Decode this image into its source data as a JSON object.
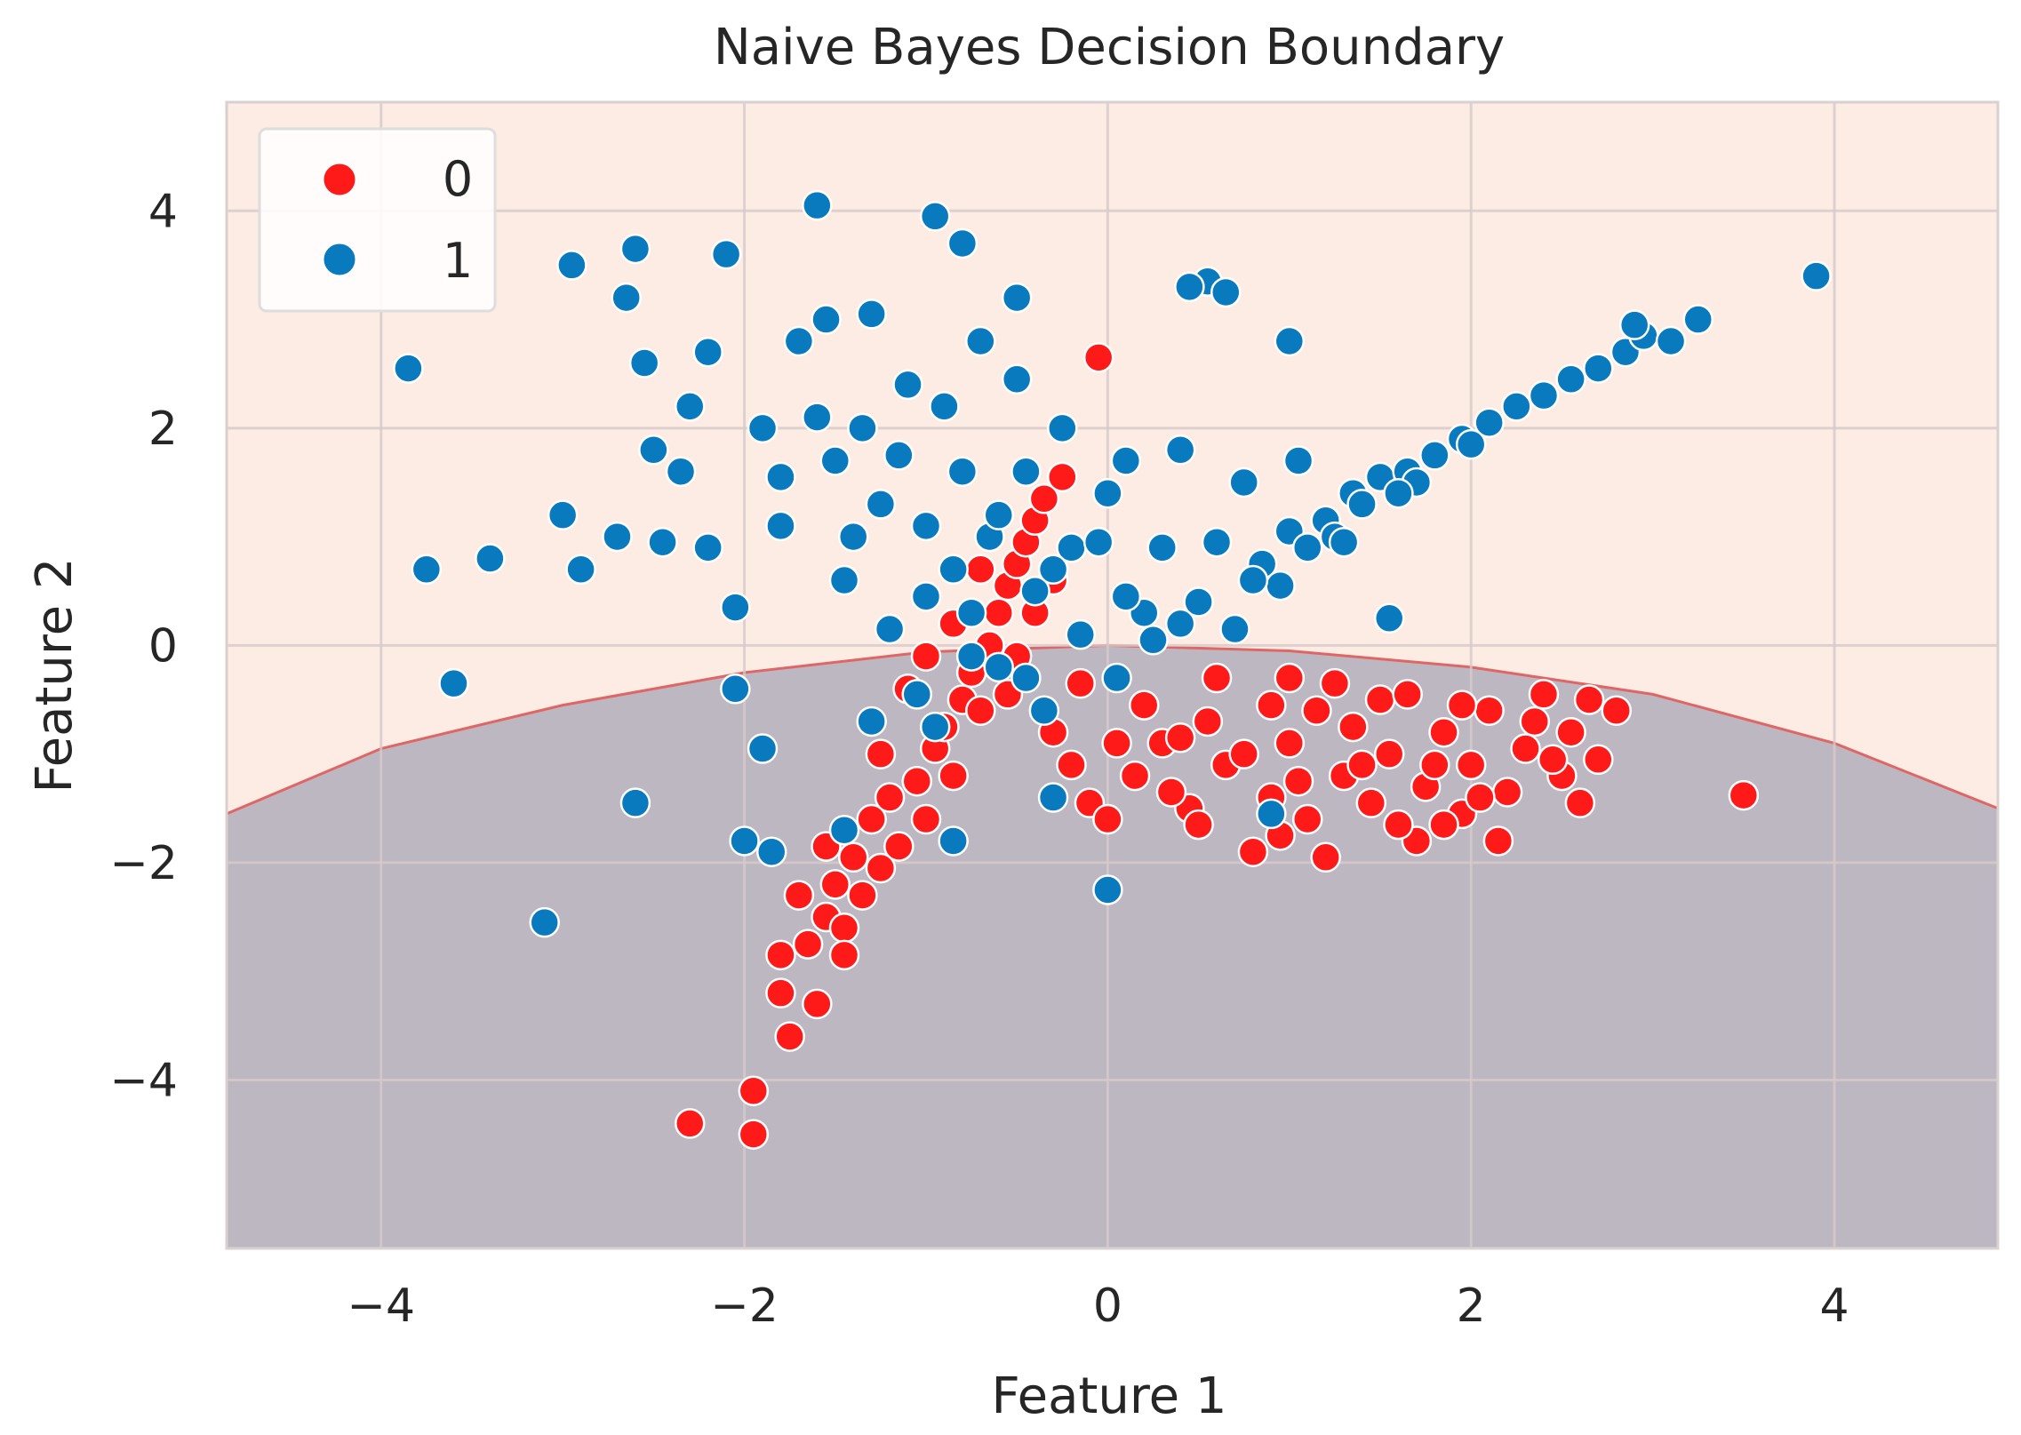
{
  "chart_data": {
    "type": "scatter",
    "title": "Naive Bayes Decision Boundary",
    "xlabel": "Feature 1",
    "ylabel": "Feature 2",
    "xlim": [
      -4.85,
      4.9
    ],
    "ylim": [
      -5.55,
      5.0
    ],
    "xticks": [
      -4,
      -2,
      0,
      2,
      4
    ],
    "yticks": [
      -4,
      -2,
      0,
      2,
      4
    ],
    "xtick_labels": [
      "−4",
      "−2",
      "0",
      "2",
      "4"
    ],
    "ytick_labels": [
      "−4",
      "−2",
      "0",
      "2",
      "4"
    ],
    "grid": true,
    "legend_position": "top-left",
    "background_colors": {
      "class_1_region": "#fdece3",
      "class_0_region": "#bdb7c1",
      "boundary": "#e06666"
    },
    "decision_boundary": {
      "x": [
        -4.85,
        -4.0,
        -3.0,
        -2.0,
        -1.0,
        0.0,
        1.0,
        2.0,
        3.0,
        4.0,
        4.9
      ],
      "y": [
        -1.55,
        -0.95,
        -0.55,
        -0.25,
        -0.06,
        0.0,
        -0.05,
        -0.2,
        -0.45,
        -0.9,
        -1.5
      ]
    },
    "series": [
      {
        "name": "0",
        "color": "#ff1a1a",
        "points": [
          [
            -0.05,
            2.65
          ],
          [
            3.5,
            -1.38
          ],
          [
            -2.3,
            -4.4
          ],
          [
            -1.95,
            -4.1
          ],
          [
            -1.95,
            -4.5
          ],
          [
            -1.75,
            -3.6
          ],
          [
            -1.8,
            -3.2
          ],
          [
            -1.8,
            -2.85
          ],
          [
            -1.6,
            -3.3
          ],
          [
            -1.65,
            -2.75
          ],
          [
            -1.55,
            -2.5
          ],
          [
            -1.5,
            -2.2
          ],
          [
            -1.45,
            -2.6
          ],
          [
            -1.4,
            -1.95
          ],
          [
            -1.35,
            -2.3
          ],
          [
            -1.3,
            -1.6
          ],
          [
            -1.25,
            -2.05
          ],
          [
            -1.2,
            -1.4
          ],
          [
            -1.15,
            -1.85
          ],
          [
            -1.05,
            -1.25
          ],
          [
            -1.0,
            -1.6
          ],
          [
            -0.95,
            -0.95
          ],
          [
            -0.9,
            -0.75
          ],
          [
            -0.85,
            -1.2
          ],
          [
            -0.8,
            -0.5
          ],
          [
            -0.75,
            -0.25
          ],
          [
            -0.7,
            -0.6
          ],
          [
            -0.65,
            0.0
          ],
          [
            -0.6,
            0.3
          ],
          [
            -0.55,
            0.55
          ],
          [
            -0.5,
            0.75
          ],
          [
            -0.45,
            0.95
          ],
          [
            -0.4,
            1.15
          ],
          [
            -0.35,
            1.35
          ],
          [
            -0.25,
            1.55
          ],
          [
            -0.3,
            0.6
          ],
          [
            -0.4,
            0.3
          ],
          [
            -0.5,
            -0.1
          ],
          [
            -0.3,
            -0.8
          ],
          [
            -0.2,
            -1.1
          ],
          [
            -0.1,
            -1.45
          ],
          [
            0.0,
            -1.6
          ],
          [
            0.15,
            -1.2
          ],
          [
            0.3,
            -0.9
          ],
          [
            0.45,
            -1.5
          ],
          [
            0.55,
            -0.7
          ],
          [
            0.65,
            -1.1
          ],
          [
            0.8,
            -1.9
          ],
          [
            0.9,
            -1.4
          ],
          [
            1.0,
            -0.9
          ],
          [
            1.1,
            -1.6
          ],
          [
            1.15,
            -0.6
          ],
          [
            1.2,
            -1.95
          ],
          [
            1.3,
            -1.2
          ],
          [
            1.35,
            -0.75
          ],
          [
            1.45,
            -1.45
          ],
          [
            1.5,
            -0.5
          ],
          [
            1.55,
            -1.0
          ],
          [
            1.7,
            -1.8
          ],
          [
            1.75,
            -1.3
          ],
          [
            1.85,
            -0.8
          ],
          [
            1.95,
            -1.55
          ],
          [
            2.0,
            -1.1
          ],
          [
            2.1,
            -0.6
          ],
          [
            2.2,
            -1.35
          ],
          [
            2.3,
            -0.95
          ],
          [
            2.4,
            -0.45
          ],
          [
            2.5,
            -1.2
          ],
          [
            2.55,
            -0.8
          ],
          [
            2.65,
            -0.5
          ],
          [
            2.7,
            -1.05
          ],
          [
            2.8,
            -0.6
          ],
          [
            2.6,
            -1.45
          ],
          [
            2.15,
            -1.8
          ],
          [
            1.6,
            -1.65
          ],
          [
            0.6,
            -0.3
          ],
          [
            0.9,
            -0.55
          ],
          [
            1.25,
            -0.35
          ],
          [
            1.95,
            -0.55
          ],
          [
            2.35,
            -0.7
          ],
          [
            0.2,
            -0.55
          ],
          [
            0.4,
            -0.85
          ],
          [
            0.75,
            -1.0
          ],
          [
            1.05,
            -1.25
          ],
          [
            1.4,
            -1.1
          ],
          [
            1.8,
            -1.1
          ],
          [
            2.05,
            -1.4
          ],
          [
            0.05,
            -0.9
          ],
          [
            -0.15,
            -0.35
          ],
          [
            0.35,
            -1.35
          ],
          [
            0.95,
            -1.75
          ],
          [
            1.65,
            -0.45
          ],
          [
            -1.1,
            -0.4
          ],
          [
            -1.25,
            -1.0
          ],
          [
            -1.0,
            -0.1
          ],
          [
            -0.85,
            0.2
          ],
          [
            -0.7,
            0.7
          ],
          [
            -0.55,
            -0.45
          ],
          [
            -1.55,
            -1.85
          ],
          [
            -1.7,
            -2.3
          ],
          [
            -1.45,
            -2.85
          ],
          [
            0.5,
            -1.65
          ],
          [
            1.0,
            -0.3
          ],
          [
            1.85,
            -1.65
          ],
          [
            2.45,
            -1.05
          ]
        ]
      },
      {
        "name": "1",
        "color": "#0a7abf",
        "points": [
          [
            3.9,
            3.4
          ],
          [
            -3.85,
            2.55
          ],
          [
            -3.75,
            0.7
          ],
          [
            -3.6,
            -0.35
          ],
          [
            -3.4,
            0.8
          ],
          [
            -3.1,
            -2.55
          ],
          [
            -3.0,
            1.2
          ],
          [
            -2.95,
            3.5
          ],
          [
            -2.9,
            0.7
          ],
          [
            -2.65,
            3.2
          ],
          [
            -2.6,
            3.65
          ],
          [
            -2.55,
            2.6
          ],
          [
            -2.5,
            1.8
          ],
          [
            -2.45,
            0.95
          ],
          [
            -2.6,
            -1.45
          ],
          [
            -2.3,
            2.2
          ],
          [
            -2.2,
            2.7
          ],
          [
            -2.1,
            3.6
          ],
          [
            -2.05,
            0.35
          ],
          [
            -2.05,
            -0.4
          ],
          [
            -2.0,
            -1.8
          ],
          [
            -1.9,
            -0.95
          ],
          [
            -1.85,
            -1.9
          ],
          [
            -1.9,
            2.0
          ],
          [
            -1.8,
            1.1
          ],
          [
            -1.7,
            2.8
          ],
          [
            -1.6,
            4.05
          ],
          [
            -1.55,
            3.0
          ],
          [
            -1.5,
            1.7
          ],
          [
            -1.45,
            0.6
          ],
          [
            -1.35,
            2.0
          ],
          [
            -1.3,
            3.05
          ],
          [
            -1.25,
            1.3
          ],
          [
            -1.2,
            0.15
          ],
          [
            -1.1,
            2.4
          ],
          [
            -1.0,
            1.1
          ],
          [
            -0.95,
            3.95
          ],
          [
            -0.9,
            2.2
          ],
          [
            -0.85,
            0.7
          ],
          [
            -0.8,
            3.7
          ],
          [
            -0.8,
            1.6
          ],
          [
            -0.75,
            0.3
          ],
          [
            -0.7,
            2.8
          ],
          [
            -0.65,
            1.0
          ],
          [
            -0.6,
            -0.2
          ],
          [
            -0.5,
            3.2
          ],
          [
            -0.45,
            1.6
          ],
          [
            -0.4,
            0.5
          ],
          [
            -0.35,
            -0.6
          ],
          [
            -0.3,
            -1.4
          ],
          [
            -0.25,
            2.0
          ],
          [
            -0.2,
            0.9
          ],
          [
            -0.15,
            0.1
          ],
          [
            0.0,
            1.4
          ],
          [
            0.05,
            -0.3
          ],
          [
            0.1,
            1.7
          ],
          [
            0.2,
            0.3
          ],
          [
            0.3,
            0.9
          ],
          [
            0.4,
            1.8
          ],
          [
            0.5,
            0.4
          ],
          [
            0.55,
            3.35
          ],
          [
            0.45,
            3.3
          ],
          [
            0.65,
            3.25
          ],
          [
            0.7,
            0.15
          ],
          [
            0.75,
            1.5
          ],
          [
            0.85,
            0.75
          ],
          [
            0.9,
            -1.55
          ],
          [
            1.0,
            2.8
          ],
          [
            1.0,
            1.05
          ],
          [
            1.05,
            1.7
          ],
          [
            1.2,
            1.15
          ],
          [
            1.35,
            1.4
          ],
          [
            1.5,
            1.55
          ],
          [
            1.55,
            0.25
          ],
          [
            1.65,
            1.6
          ],
          [
            1.8,
            1.75
          ],
          [
            1.95,
            1.9
          ],
          [
            2.1,
            2.05
          ],
          [
            2.25,
            2.2
          ],
          [
            2.4,
            2.3
          ],
          [
            2.55,
            2.45
          ],
          [
            2.7,
            2.55
          ],
          [
            2.85,
            2.7
          ],
          [
            2.95,
            2.85
          ],
          [
            3.1,
            2.8
          ],
          [
            3.25,
            3.0
          ],
          [
            2.9,
            2.95
          ],
          [
            0.0,
            -2.25
          ],
          [
            -1.3,
            -0.7
          ],
          [
            -0.95,
            -0.75
          ],
          [
            -1.6,
            2.1
          ],
          [
            -2.35,
            1.6
          ],
          [
            -0.5,
            2.45
          ],
          [
            -1.15,
            1.75
          ],
          [
            -0.6,
            1.2
          ],
          [
            -0.3,
            0.7
          ],
          [
            0.25,
            0.05
          ],
          [
            0.6,
            0.95
          ],
          [
            0.95,
            0.55
          ],
          [
            1.25,
            1.0
          ],
          [
            1.4,
            1.3
          ],
          [
            1.7,
            1.5
          ],
          [
            2.0,
            1.85
          ],
          [
            -1.8,
            1.55
          ],
          [
            -2.2,
            0.9
          ],
          [
            -2.7,
            1.0
          ],
          [
            -1.0,
            0.45
          ],
          [
            -0.75,
            -0.1
          ],
          [
            -0.45,
            -0.3
          ],
          [
            0.1,
            0.45
          ],
          [
            0.4,
            0.2
          ],
          [
            0.8,
            0.6
          ],
          [
            1.1,
            0.9
          ],
          [
            1.3,
            0.95
          ],
          [
            1.6,
            1.4
          ],
          [
            -1.45,
            -1.7
          ],
          [
            -0.85,
            -1.8
          ],
          [
            -1.05,
            -0.45
          ],
          [
            -1.4,
            1.0
          ],
          [
            -0.05,
            0.95
          ]
        ]
      }
    ]
  }
}
